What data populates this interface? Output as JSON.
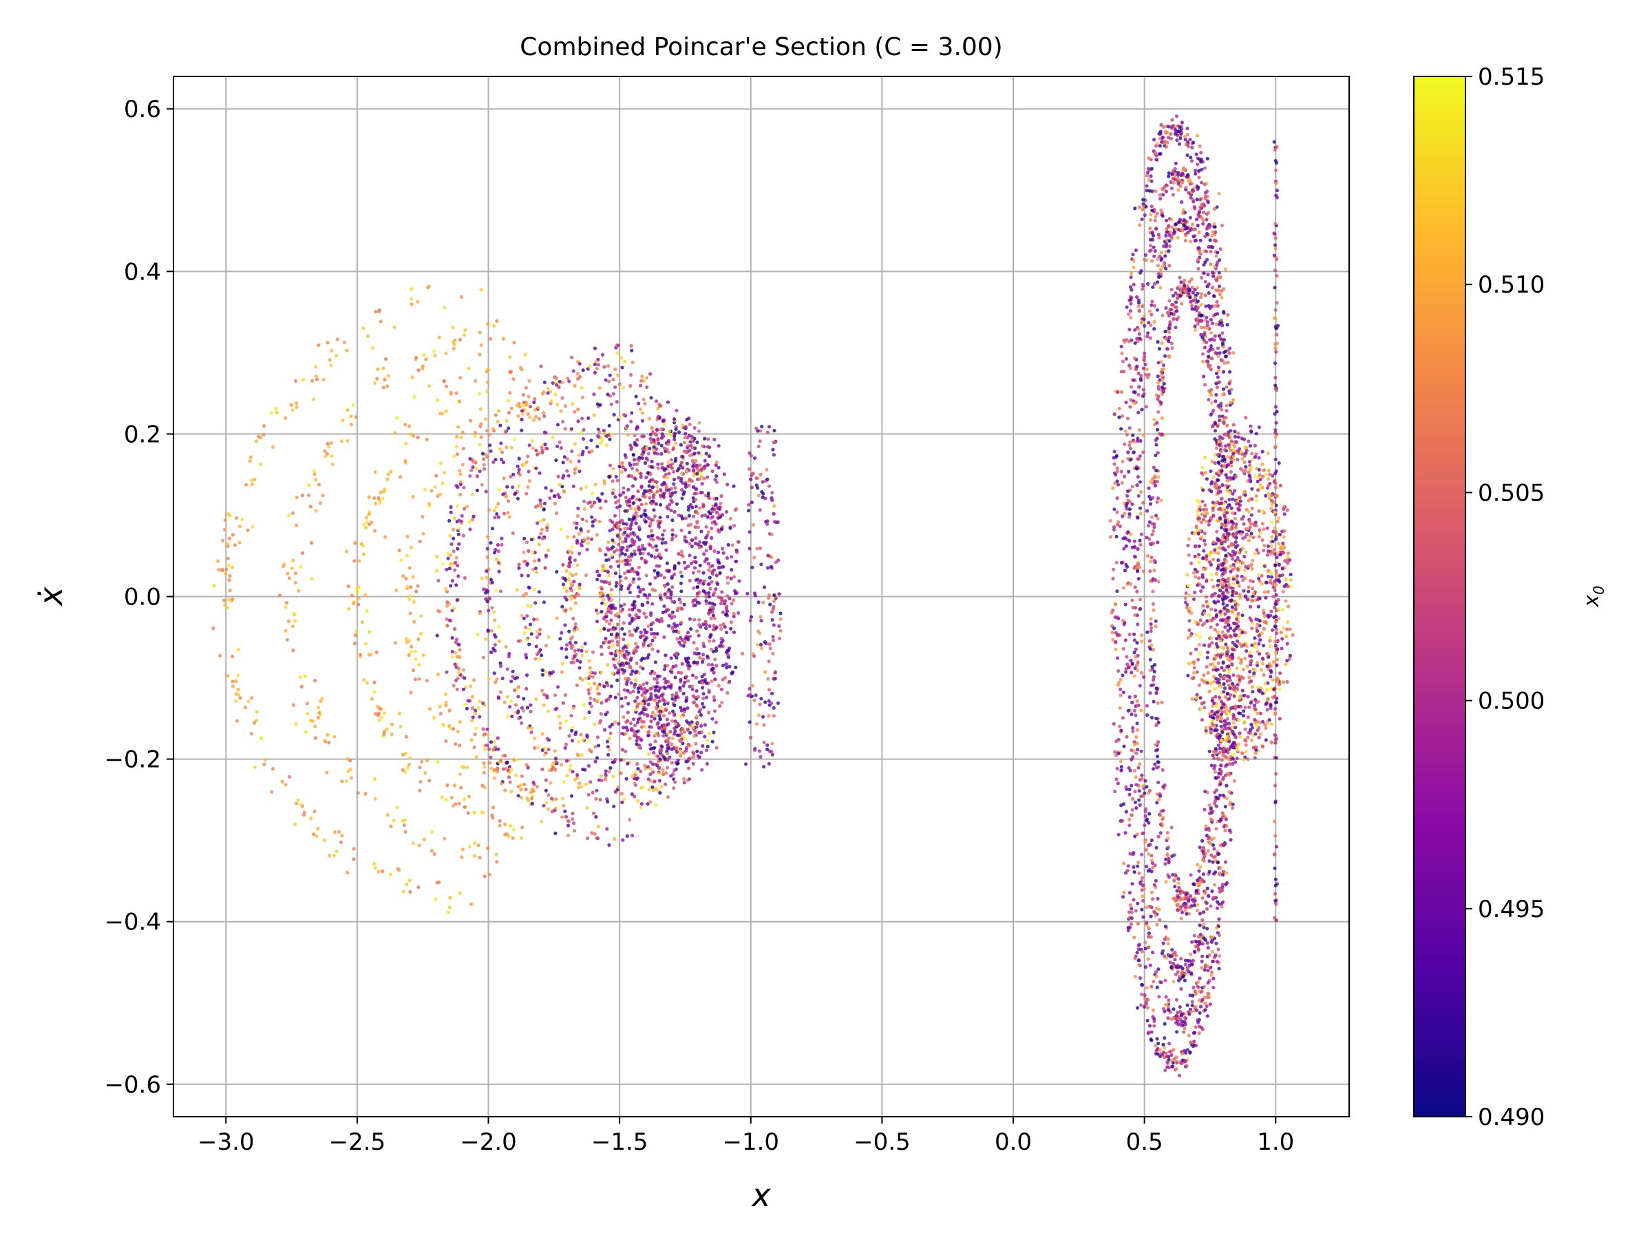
{
  "chart_data": {
    "type": "scatter",
    "title": "Combined Poincar'e Section (C = 3.00)",
    "xlabel": "x",
    "ylabel": "ẋ",
    "xlim": [
      -3.2,
      1.28
    ],
    "ylim": [
      -0.64,
      0.64
    ],
    "grid": true,
    "x_ticks": [
      -3.0,
      -2.5,
      -2.0,
      -1.5,
      -1.0,
      -0.5,
      0.0,
      0.5,
      1.0
    ],
    "x_tick_labels": [
      "−3.0",
      "−2.5",
      "−2.0",
      "−1.5",
      "−1.0",
      "−0.5",
      "0.0",
      "0.5",
      "1.0"
    ],
    "y_ticks": [
      -0.6,
      -0.4,
      -0.2,
      0.0,
      0.2,
      0.4,
      0.6
    ],
    "y_tick_labels": [
      "−0.6",
      "−0.4",
      "−0.2",
      "0.0",
      "0.2",
      "0.4",
      "0.6"
    ],
    "colorbar": {
      "label": "x₀",
      "label_main": "x",
      "label_sub": "0",
      "colormap": "plasma",
      "range": [
        0.49,
        0.515
      ],
      "ticks": [
        0.49,
        0.495,
        0.5,
        0.505,
        0.51,
        0.515
      ],
      "tick_labels": [
        "0.490",
        "0.495",
        "0.500",
        "0.505",
        "0.510",
        "0.515"
      ],
      "stops": [
        "#0d0887",
        "#5302a3",
        "#8b0aa5",
        "#b83289",
        "#db5c68",
        "#f48849",
        "#febc2a",
        "#f0f921"
      ]
    },
    "structures": [
      {
        "name": "left_outer",
        "x_min": -3.0,
        "x_max": -2.0,
        "xdot_amplitude": 0.4,
        "x0_range": [
          0.507,
          0.514
        ]
      },
      {
        "name": "left_middle",
        "x_min": -2.1,
        "x_max": -1.1,
        "xdot_amplitude": 0.27,
        "x0_range": [
          0.49,
          0.515
        ]
      },
      {
        "name": "left_inner",
        "x_min": -1.6,
        "x_max": -1.0,
        "xdot_amplitude": 0.2,
        "x0_range": [
          0.49,
          0.505
        ]
      },
      {
        "name": "left_tail",
        "x_min": -1.0,
        "x_max": -0.88,
        "xdot_amplitude": 0.22,
        "x0_range": [
          0.49,
          0.51
        ]
      },
      {
        "name": "right_ellipse",
        "x_center": 0.62,
        "x_halfwidth": 0.42,
        "xdot_amplitude": 0.58,
        "x0_range": [
          0.49,
          0.51
        ]
      },
      {
        "name": "right_core",
        "x_center": 0.86,
        "x_halfwidth": 0.2,
        "xdot_amplitude": 0.2,
        "x0_range": [
          0.495,
          0.515
        ]
      },
      {
        "name": "right_line",
        "x": 1.0,
        "xdot_range": [
          -0.4,
          0.56
        ],
        "x0_range": [
          0.49,
          0.51
        ]
      }
    ]
  }
}
